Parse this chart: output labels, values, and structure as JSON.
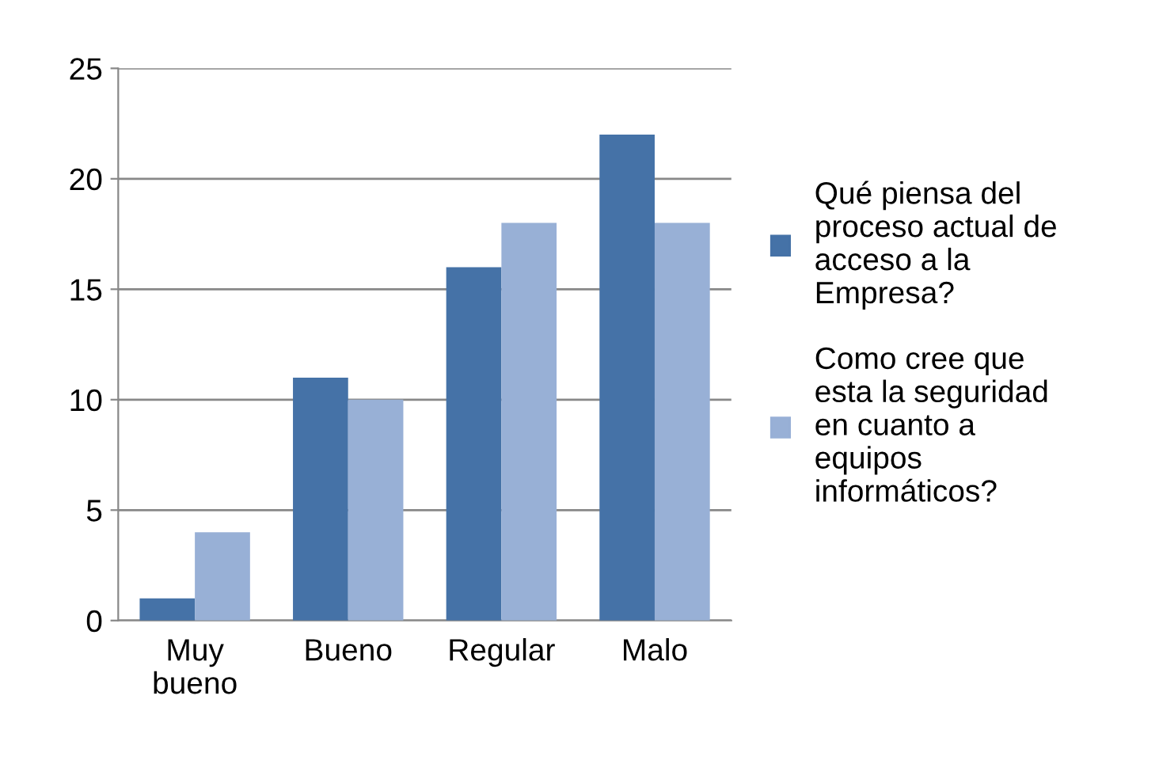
{
  "chart_data": {
    "type": "bar",
    "categories": [
      "Muy\nbueno",
      "Bueno",
      "Regular",
      "Malo"
    ],
    "series": [
      {
        "name": "Qué piensa del proceso actual de acceso a la Empresa?",
        "color": "#4572a7",
        "values": [
          1,
          11,
          16,
          22
        ]
      },
      {
        "name": "Como cree que esta la seguridad en cuanto a equipos informáticos?",
        "color": "#98b0d6",
        "values": [
          4,
          10,
          18,
          18
        ]
      }
    ],
    "ylim": [
      0,
      25
    ],
    "yticks": [
      0,
      5,
      10,
      15,
      20,
      25
    ],
    "grid": "y",
    "legend": "right"
  }
}
